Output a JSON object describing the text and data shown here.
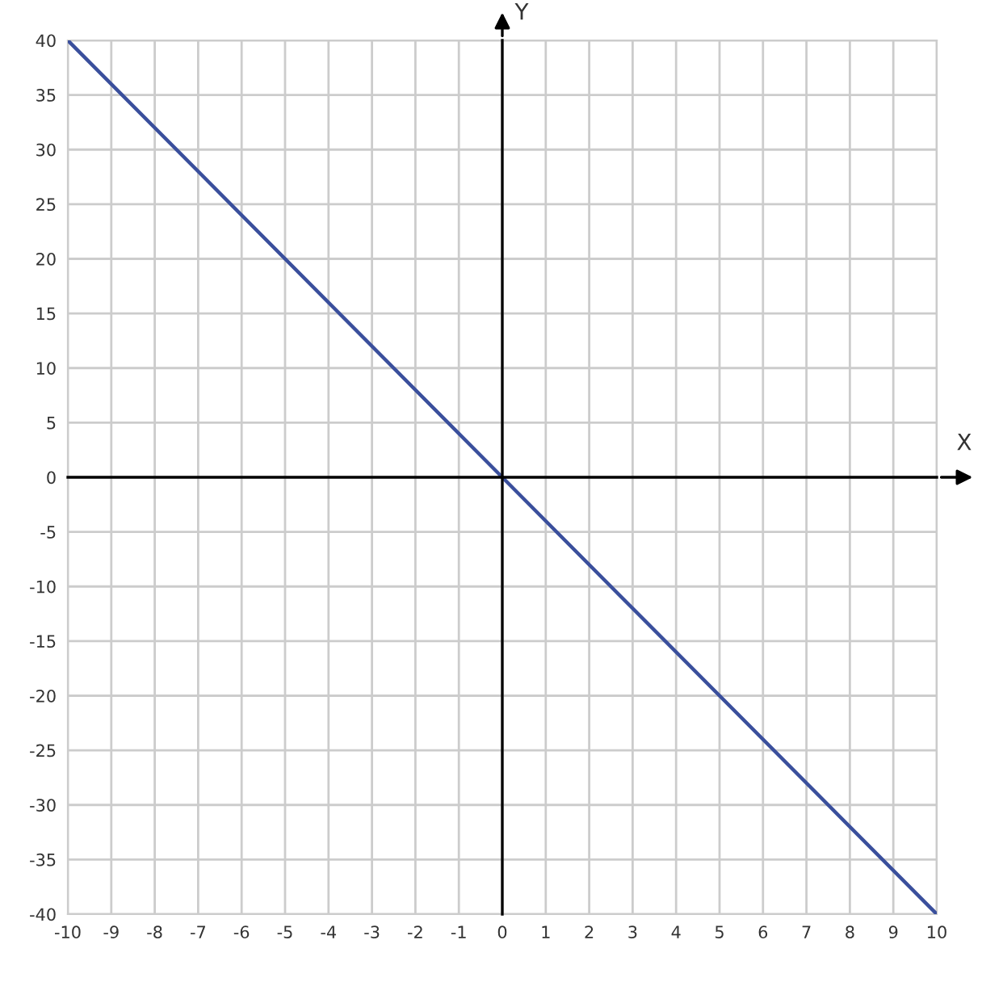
{
  "chart_data": {
    "type": "line",
    "xlabel": "X",
    "ylabel": "Y",
    "x": [
      -10,
      0,
      10
    ],
    "series": [
      {
        "color": "#3a4f9c",
        "values": [
          40,
          0,
          -40
        ]
      }
    ],
    "xlim": [
      -10,
      10
    ],
    "ylim": [
      -40,
      40
    ],
    "xticks": [
      -10,
      -9,
      -8,
      -7,
      -6,
      -5,
      -4,
      -3,
      -2,
      -1,
      0,
      1,
      2,
      3,
      4,
      5,
      6,
      7,
      8,
      9,
      10
    ],
    "yticks": [
      -40,
      -35,
      -30,
      -25,
      -20,
      -15,
      -10,
      -5,
      0,
      5,
      10,
      15,
      20,
      25,
      30,
      35,
      40
    ],
    "grid": true,
    "marker": "none",
    "line_style": "solid"
  }
}
